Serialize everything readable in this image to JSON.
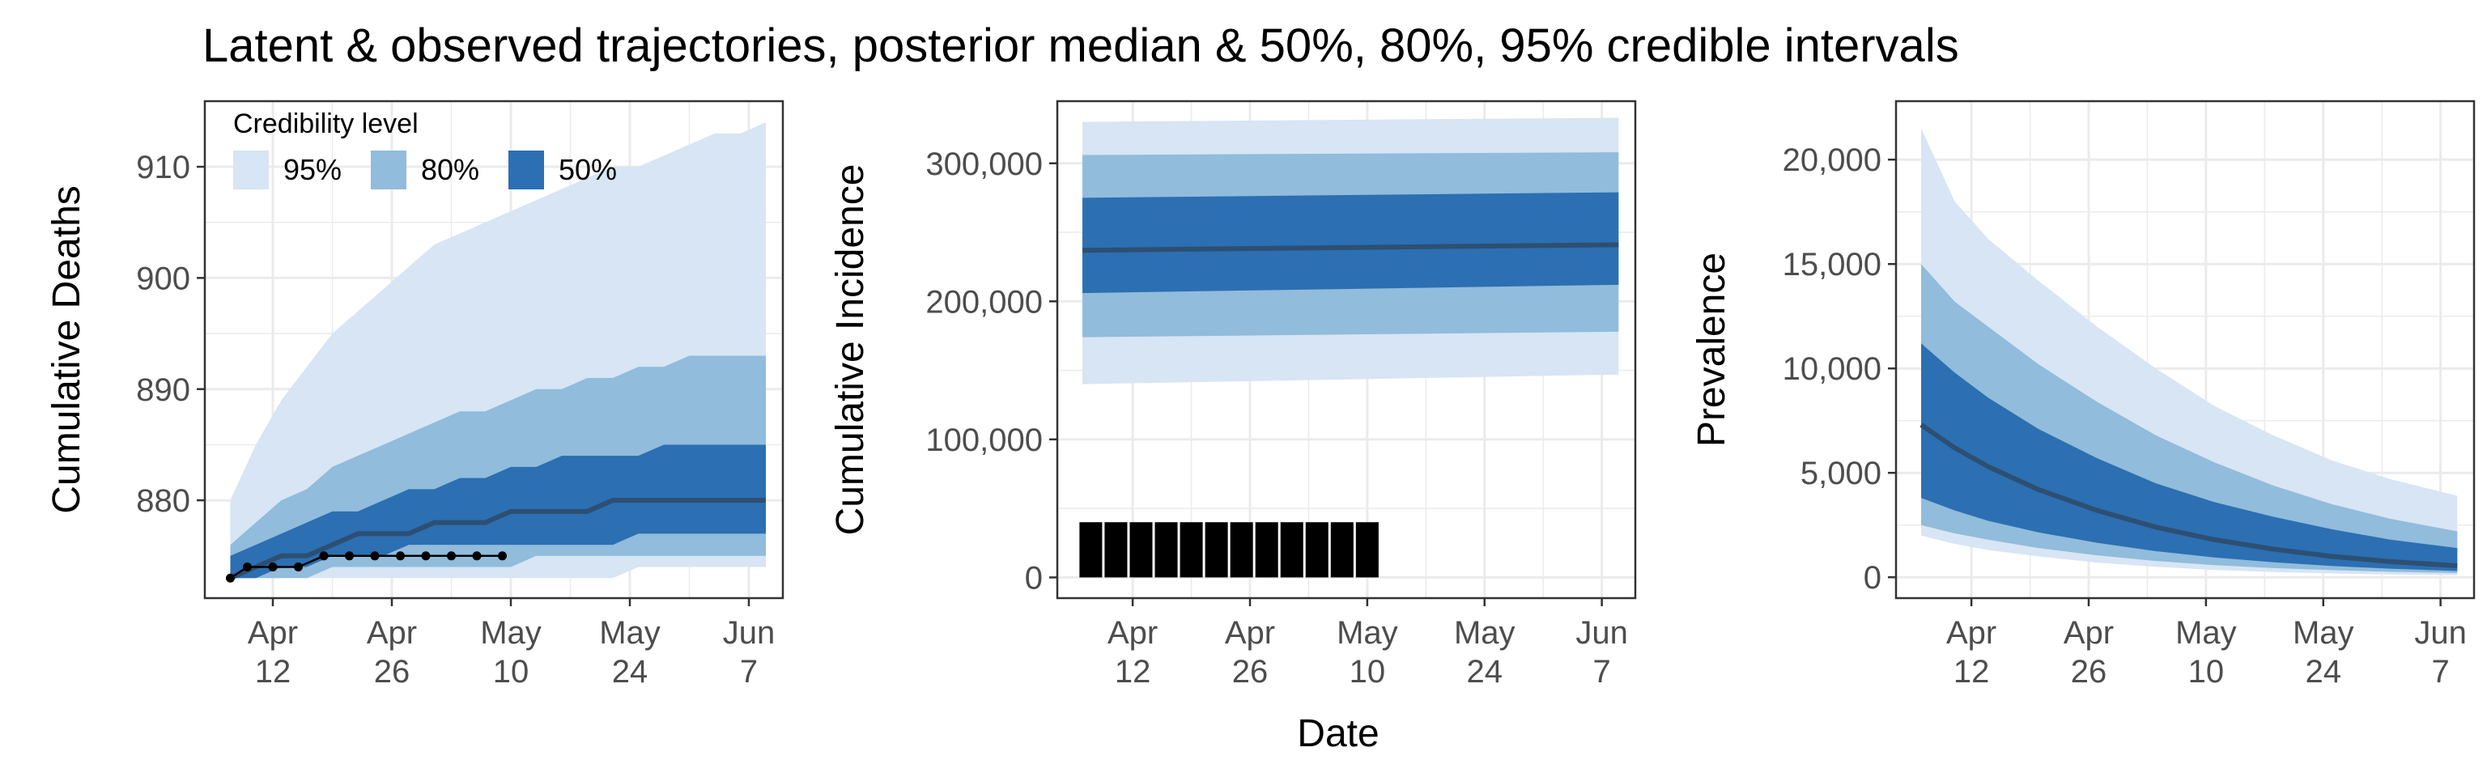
{
  "title": "Latent & observed trajectories, posterior median & 50%, 80%, 95% credible intervals",
  "shared_xlabel": "Date",
  "colors": {
    "band95": "#d7e5f4",
    "band80": "#91bcdb",
    "band50": "#2c6fb2",
    "median": "#2d4f72",
    "observed": "#000000",
    "grid": "#ebebeb",
    "panel_border": "#333333"
  },
  "legend": {
    "title": "Credibility level",
    "items": [
      "95%",
      "80%",
      "50%"
    ]
  },
  "chart_data": [
    {
      "type": "area",
      "ylabel": "Cumulative Deaths",
      "x_ticks": [
        [
          "Apr",
          "12"
        ],
        [
          "Apr",
          "26"
        ],
        [
          "May",
          "10"
        ],
        [
          "May",
          "24"
        ],
        [
          "Jun",
          "7"
        ]
      ],
      "y_ticks": [
        "880",
        "890",
        "900",
        "910"
      ],
      "xlim": [
        "2020-04-04",
        "2020-06-11"
      ],
      "ylim": [
        871.2,
        915.9
      ],
      "x": [
        "2020-04-07",
        "2020-04-10",
        "2020-04-13",
        "2020-04-16",
        "2020-04-19",
        "2020-04-22",
        "2020-04-25",
        "2020-04-28",
        "2020-05-01",
        "2020-05-04",
        "2020-05-07",
        "2020-05-10",
        "2020-05-13",
        "2020-05-16",
        "2020-05-19",
        "2020-05-22",
        "2020-05-25",
        "2020-05-28",
        "2020-05-31",
        "2020-06-03",
        "2020-06-06",
        "2020-06-09"
      ],
      "bands": {
        "95": {
          "lower": [
            873,
            873,
            873,
            873,
            873,
            873,
            873,
            873,
            873,
            873,
            873,
            873,
            873,
            873,
            873,
            873,
            874,
            874,
            874,
            874,
            874,
            874
          ],
          "upper": [
            880,
            885,
            889,
            892,
            895,
            897,
            899,
            901,
            903,
            904,
            905,
            906,
            907,
            908,
            909,
            910,
            910,
            911,
            912,
            913,
            913,
            914
          ]
        },
        "80": {
          "lower": [
            873,
            873,
            873,
            873,
            874,
            874,
            874,
            874,
            874,
            874,
            874,
            874,
            875,
            875,
            875,
            875,
            875,
            875,
            875,
            875,
            875,
            875
          ],
          "upper": [
            876,
            878,
            880,
            881,
            883,
            884,
            885,
            886,
            887,
            888,
            888,
            889,
            890,
            890,
            891,
            891,
            892,
            892,
            893,
            893,
            893,
            893
          ]
        },
        "50": {
          "lower": [
            873,
            873,
            874,
            874,
            875,
            875,
            875,
            876,
            876,
            876,
            876,
            876,
            876,
            876,
            876,
            876,
            877,
            877,
            877,
            877,
            877,
            877
          ],
          "upper": [
            875,
            876,
            877,
            878,
            879,
            879,
            880,
            881,
            881,
            882,
            882,
            883,
            883,
            884,
            884,
            884,
            884,
            885,
            885,
            885,
            885,
            885
          ]
        }
      },
      "median": [
        873,
        874,
        875,
        875,
        876,
        877,
        877,
        877,
        878,
        878,
        878,
        879,
        879,
        879,
        879,
        880,
        880,
        880,
        880,
        880,
        880,
        880
      ],
      "observed": {
        "x": [
          "2020-04-07",
          "2020-04-09",
          "2020-04-12",
          "2020-04-15",
          "2020-04-18",
          "2020-04-21",
          "2020-04-24",
          "2020-04-27",
          "2020-04-30",
          "2020-05-03",
          "2020-05-06",
          "2020-05-09"
        ],
        "y": [
          873,
          874,
          874,
          874,
          875,
          875,
          875,
          875,
          875,
          875,
          875,
          875
        ]
      }
    },
    {
      "type": "area",
      "ylabel": "Cumulative Incidence",
      "x_ticks": [
        [
          "Apr",
          "12"
        ],
        [
          "Apr",
          "26"
        ],
        [
          "May",
          "10"
        ],
        [
          "May",
          "24"
        ],
        [
          "Jun",
          "7"
        ]
      ],
      "y_ticks": [
        "0",
        "100,000",
        "200,000",
        "300,000"
      ],
      "xlim": [
        "2020-04-03",
        "2020-06-11"
      ],
      "ylim": [
        -15000,
        345000
      ],
      "x": [
        "2020-04-06",
        "2020-06-09"
      ],
      "bands": {
        "95": {
          "lower": [
            140000,
            147000
          ],
          "upper": [
            330000,
            333000
          ]
        },
        "80": {
          "lower": [
            174000,
            178000
          ],
          "upper": [
            306000,
            308000
          ]
        },
        "50": {
          "lower": [
            206000,
            212000
          ],
          "upper": [
            275000,
            279000
          ]
        }
      },
      "median": [
        237000,
        241000
      ],
      "observed_bars": {
        "x": [
          "2020-04-07",
          "2020-04-10",
          "2020-04-13",
          "2020-04-16",
          "2020-04-19",
          "2020-04-22",
          "2020-04-25",
          "2020-04-28",
          "2020-05-01",
          "2020-05-04",
          "2020-05-07",
          "2020-05-10"
        ],
        "y": [
          40000,
          40000,
          40000,
          40000,
          40000,
          40000,
          40000,
          40000,
          40000,
          40000,
          40000,
          40000
        ]
      }
    },
    {
      "type": "area",
      "ylabel": "Prevalence",
      "x_ticks": [
        [
          "Apr",
          "12"
        ],
        [
          "Apr",
          "26"
        ],
        [
          "May",
          "10"
        ],
        [
          "May",
          "24"
        ],
        [
          "Jun",
          "7"
        ]
      ],
      "y_ticks": [
        "0",
        "5,000",
        "10,000",
        "15,000",
        "20,000"
      ],
      "xlim": [
        "2020-04-03",
        "2020-06-11"
      ],
      "ylim": [
        -1000,
        22800
      ],
      "x": [
        "2020-04-06",
        "2020-04-10",
        "2020-04-14",
        "2020-04-20",
        "2020-04-27",
        "2020-05-04",
        "2020-05-11",
        "2020-05-18",
        "2020-05-25",
        "2020-06-01",
        "2020-06-09"
      ],
      "bands": {
        "95": {
          "lower": [
            2000,
            1600,
            1300,
            1000,
            700,
            500,
            350,
            250,
            180,
            130,
            100
          ],
          "upper": [
            21500,
            18000,
            16200,
            14200,
            12000,
            10000,
            8200,
            6800,
            5600,
            4700,
            3900
          ]
        },
        "80": {
          "lower": [
            2500,
            2100,
            1800,
            1400,
            1050,
            780,
            580,
            440,
            340,
            260,
            200
          ],
          "upper": [
            15000,
            13200,
            12000,
            10200,
            8400,
            6800,
            5500,
            4400,
            3500,
            2800,
            2200
          ]
        },
        "50": {
          "lower": [
            3800,
            3200,
            2700,
            2150,
            1650,
            1250,
            950,
            720,
            540,
            410,
            300
          ],
          "upper": [
            11200,
            9800,
            8600,
            7100,
            5700,
            4500,
            3600,
            2900,
            2300,
            1800,
            1400
          ]
        }
      },
      "median": [
        7300,
        6200,
        5300,
        4200,
        3200,
        2400,
        1800,
        1350,
        1000,
        750,
        550
      ]
    }
  ]
}
